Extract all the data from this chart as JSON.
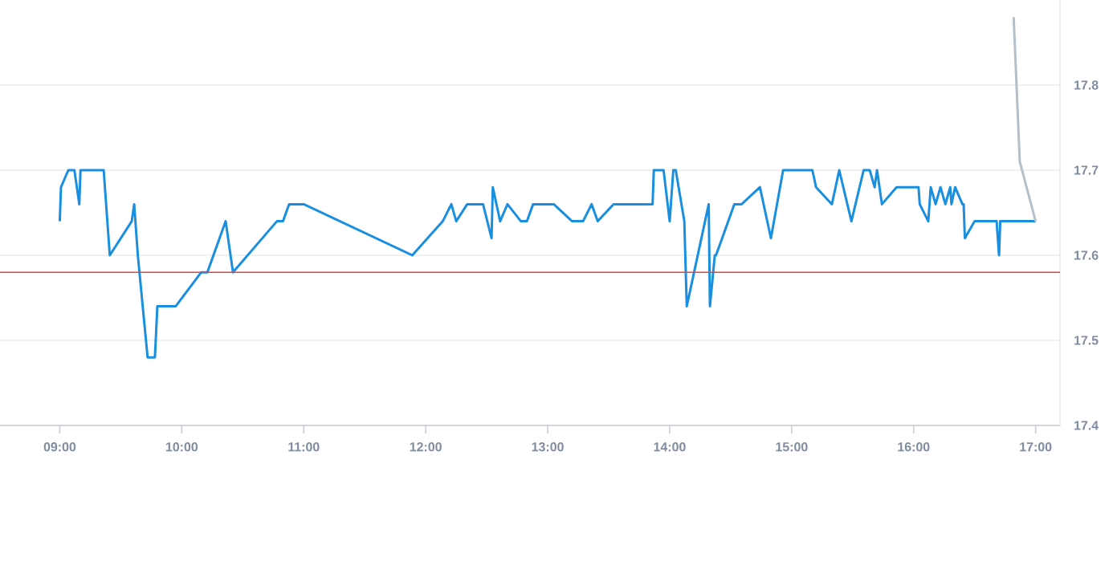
{
  "chart_data": {
    "type": "line",
    "xlim": [
      8.51,
      17.2
    ],
    "ylim": [
      17.4,
      17.9
    ],
    "xticks": [
      {
        "value": 9,
        "label": "09:00"
      },
      {
        "value": 10,
        "label": "10:00"
      },
      {
        "value": 11,
        "label": "11:00"
      },
      {
        "value": 12,
        "label": "12:00"
      },
      {
        "value": 13,
        "label": "13:00"
      },
      {
        "value": 14,
        "label": "14:00"
      },
      {
        "value": 15,
        "label": "15:00"
      },
      {
        "value": 16,
        "label": "16:00"
      },
      {
        "value": 17,
        "label": "17:00"
      }
    ],
    "yticks": [
      17.4,
      17.5,
      17.6,
      17.7,
      17.8
    ],
    "grid": "y",
    "marker": "none",
    "line_style": "solid",
    "ref_lines": [
      {
        "axis": "y",
        "value": 17.58,
        "color": "#e0463c"
      }
    ],
    "series": [
      {
        "color": "#1a8fe0",
        "x": [
          9.0,
          9.01,
          9.07,
          9.12,
          9.16,
          9.17,
          9.36,
          9.41,
          9.59,
          9.61,
          9.64,
          9.72,
          9.78,
          9.8,
          9.95,
          10.16,
          10.21,
          10.36,
          10.42,
          10.78,
          10.83,
          10.88,
          11.0,
          11.89,
          12.14,
          12.21,
          12.25,
          12.34,
          12.47,
          12.54,
          12.55,
          12.61,
          12.67,
          12.78,
          12.83,
          12.88,
          13.05,
          13.2,
          13.29,
          13.36,
          13.41,
          13.54,
          13.86,
          13.87,
          13.95,
          14.0,
          14.03,
          14.05,
          14.12,
          14.14,
          14.32,
          14.33,
          14.37,
          14.38,
          14.53,
          14.59,
          14.74,
          14.83,
          14.93,
          15.17,
          15.2,
          15.33,
          15.39,
          15.49,
          15.59,
          15.64,
          15.68,
          15.7,
          15.74,
          15.86,
          16.04,
          16.05,
          16.12,
          16.14,
          16.18,
          16.22,
          16.26,
          16.3,
          16.31,
          16.34,
          16.4,
          16.41,
          16.42,
          16.5,
          16.68,
          16.7,
          16.71,
          17.0
        ],
        "values": [
          17.64,
          17.68,
          17.7,
          17.7,
          17.66,
          17.7,
          17.7,
          17.6,
          17.64,
          17.66,
          17.6,
          17.48,
          17.48,
          17.54,
          17.54,
          17.58,
          17.58,
          17.64,
          17.58,
          17.64,
          17.64,
          17.66,
          17.66,
          17.6,
          17.64,
          17.66,
          17.64,
          17.66,
          17.66,
          17.62,
          17.68,
          17.64,
          17.66,
          17.64,
          17.64,
          17.66,
          17.66,
          17.64,
          17.64,
          17.66,
          17.64,
          17.66,
          17.66,
          17.7,
          17.7,
          17.64,
          17.7,
          17.7,
          17.64,
          17.54,
          17.66,
          17.54,
          17.6,
          17.6,
          17.66,
          17.66,
          17.68,
          17.62,
          17.7,
          17.7,
          17.68,
          17.66,
          17.7,
          17.64,
          17.7,
          17.7,
          17.68,
          17.7,
          17.66,
          17.68,
          17.68,
          17.66,
          17.64,
          17.68,
          17.66,
          17.68,
          17.66,
          17.68,
          17.66,
          17.68,
          17.66,
          17.66,
          17.62,
          17.64,
          17.64,
          17.6,
          17.64,
          17.64
        ]
      },
      {
        "color": "#b4bfc8",
        "x": [
          16.82,
          16.87,
          17.0
        ],
        "values": [
          17.88,
          17.71,
          17.64
        ]
      }
    ]
  }
}
